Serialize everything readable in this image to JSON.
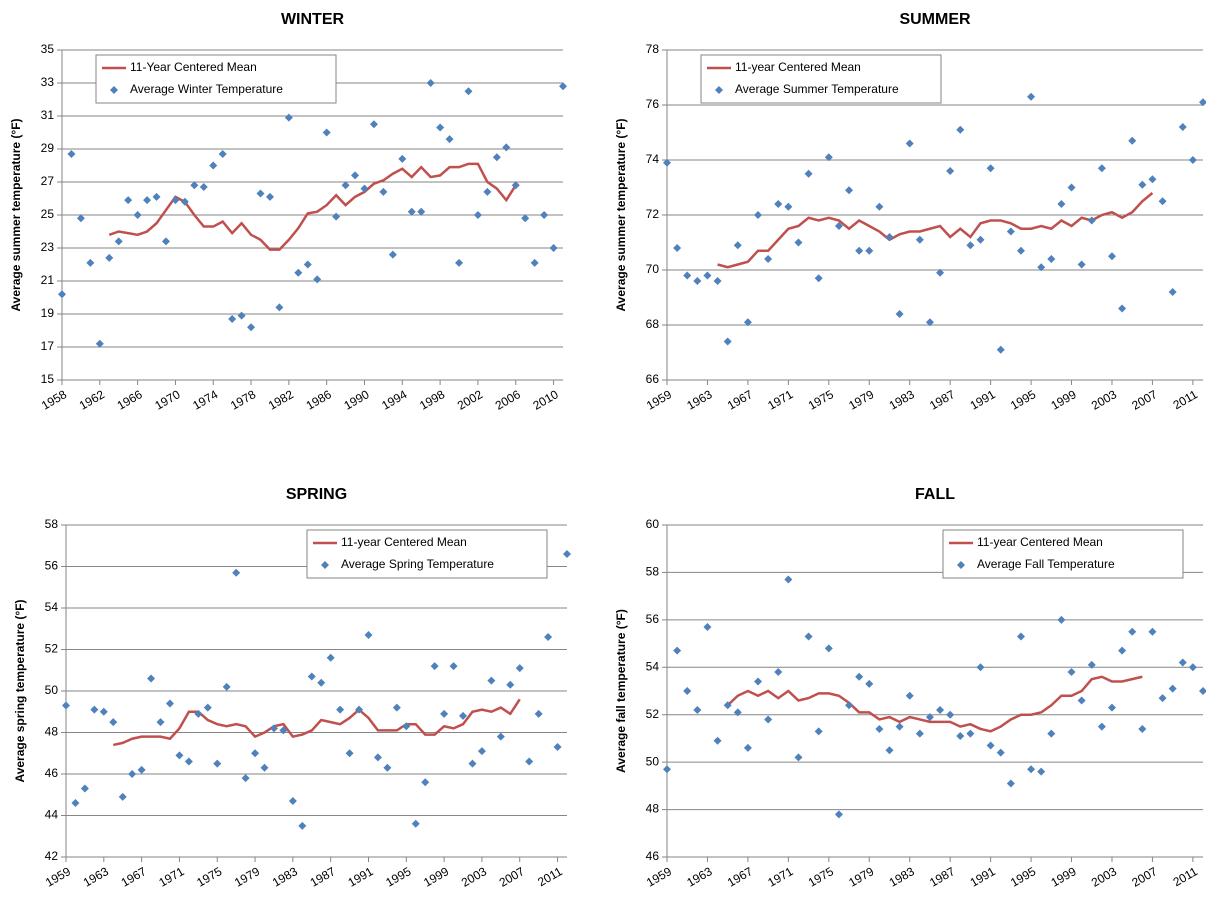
{
  "chart_data": [
    {
      "type": "line",
      "title": "WINTER",
      "y_label": "Average summer temperature (°F)",
      "legend": "top-left",
      "grid": true,
      "xlim": [
        1958,
        2011
      ],
      "xticks": [
        1958,
        1962,
        1966,
        1970,
        1974,
        1978,
        1982,
        1986,
        1990,
        1994,
        1998,
        2002,
        2006,
        2010
      ],
      "ylim": [
        15,
        35
      ],
      "yticks": [
        15,
        17,
        19,
        21,
        23,
        25,
        27,
        29,
        31,
        33,
        35
      ],
      "series": [
        {
          "name": "11-Year Centered Mean",
          "color": "#c0504d",
          "style": "line",
          "x": [
            1963,
            1964,
            1965,
            1966,
            1967,
            1968,
            1969,
            1970,
            1971,
            1972,
            1973,
            1974,
            1975,
            1976,
            1977,
            1978,
            1979,
            1980,
            1981,
            1982,
            1983,
            1984,
            1985,
            1986,
            1987,
            1988,
            1989,
            1990,
            1991,
            1992,
            1993,
            1994,
            1995,
            1996,
            1997,
            1998,
            1999,
            2000,
            2001,
            2002,
            2003,
            2004,
            2005,
            2006
          ],
          "values": [
            23.8,
            24.0,
            23.9,
            23.8,
            24.0,
            24.5,
            25.3,
            26.1,
            25.8,
            25.0,
            24.3,
            24.3,
            24.6,
            23.9,
            24.5,
            23.8,
            23.5,
            22.9,
            22.9,
            23.5,
            24.2,
            25.1,
            25.2,
            25.6,
            26.2,
            25.6,
            26.1,
            26.4,
            26.9,
            27.1,
            27.5,
            27.8,
            27.3,
            27.9,
            27.3,
            27.4,
            27.9,
            27.9,
            28.1,
            28.1,
            27.0,
            26.6,
            25.9,
            26.8
          ]
        },
        {
          "name": "Average Winter Temperature",
          "color": "#4f81bd",
          "style": "marker",
          "x": [
            1958,
            1959,
            1960,
            1961,
            1962,
            1963,
            1964,
            1965,
            1966,
            1967,
            1968,
            1969,
            1970,
            1971,
            1972,
            1973,
            1974,
            1975,
            1976,
            1977,
            1978,
            1979,
            1980,
            1981,
            1982,
            1983,
            1984,
            1985,
            1986,
            1987,
            1988,
            1989,
            1990,
            1991,
            1992,
            1993,
            1994,
            1995,
            1996,
            1997,
            1998,
            1999,
            2000,
            2001,
            2002,
            2003,
            2004,
            2005,
            2006,
            2007,
            2008,
            2009,
            2010,
            2011
          ],
          "values": [
            20.2,
            28.7,
            24.8,
            22.1,
            17.2,
            22.4,
            23.4,
            25.9,
            25.0,
            25.9,
            26.1,
            23.4,
            25.9,
            25.8,
            26.8,
            26.7,
            28.0,
            28.7,
            18.7,
            18.9,
            18.2,
            26.3,
            26.1,
            19.4,
            30.9,
            21.5,
            22.0,
            21.1,
            30.0,
            24.9,
            26.8,
            27.4,
            26.6,
            30.5,
            26.4,
            22.6,
            28.4,
            25.2,
            25.2,
            33.0,
            30.3,
            29.6,
            22.1,
            32.5,
            25.0,
            26.4,
            28.5,
            29.1,
            26.8,
            24.8,
            22.1,
            25.0,
            23.0,
            32.8
          ]
        }
      ]
    },
    {
      "type": "line",
      "title": "SUMMER",
      "y_label": "Average summer temperature (°F)",
      "legend": "top-left",
      "grid": true,
      "xlim": [
        1959,
        2012
      ],
      "xticks": [
        1959,
        1963,
        1967,
        1971,
        1975,
        1979,
        1983,
        1987,
        1991,
        1995,
        1999,
        2003,
        2007,
        2011
      ],
      "ylim": [
        66,
        78
      ],
      "yticks": [
        66,
        68,
        70,
        72,
        74,
        76,
        78
      ],
      "series": [
        {
          "name": "11-year Centered Mean",
          "color": "#c0504d",
          "style": "line",
          "x": [
            1964,
            1965,
            1966,
            1967,
            1968,
            1969,
            1970,
            1971,
            1972,
            1973,
            1974,
            1975,
            1976,
            1977,
            1978,
            1979,
            1980,
            1981,
            1982,
            1983,
            1984,
            1985,
            1986,
            1987,
            1988,
            1989,
            1990,
            1991,
            1992,
            1993,
            1994,
            1995,
            1996,
            1997,
            1998,
            1999,
            2000,
            2001,
            2002,
            2003,
            2004,
            2005,
            2006,
            2007
          ],
          "values": [
            70.2,
            70.1,
            70.2,
            70.3,
            70.7,
            70.7,
            71.1,
            71.5,
            71.6,
            71.9,
            71.8,
            71.9,
            71.8,
            71.5,
            71.8,
            71.6,
            71.4,
            71.1,
            71.3,
            71.4,
            71.4,
            71.5,
            71.6,
            71.2,
            71.5,
            71.2,
            71.7,
            71.8,
            71.8,
            71.7,
            71.5,
            71.5,
            71.6,
            71.5,
            71.8,
            71.6,
            71.9,
            71.8,
            72.0,
            72.1,
            71.9,
            72.1,
            72.5,
            72.8
          ]
        },
        {
          "name": "Average Summer Temperature",
          "color": "#4f81bd",
          "style": "marker",
          "x": [
            1959,
            1960,
            1961,
            1962,
            1963,
            1964,
            1965,
            1966,
            1967,
            1968,
            1969,
            1970,
            1971,
            1972,
            1973,
            1974,
            1975,
            1976,
            1977,
            1978,
            1979,
            1980,
            1981,
            1982,
            1983,
            1984,
            1985,
            1986,
            1987,
            1988,
            1989,
            1990,
            1991,
            1992,
            1993,
            1994,
            1995,
            1996,
            1997,
            1998,
            1999,
            2000,
            2001,
            2002,
            2003,
            2004,
            2005,
            2006,
            2007,
            2008,
            2009,
            2010,
            2011,
            2012
          ],
          "values": [
            73.9,
            70.8,
            69.8,
            69.6,
            69.8,
            69.6,
            67.4,
            70.9,
            68.1,
            72.0,
            70.4,
            72.4,
            72.3,
            71.0,
            73.5,
            69.7,
            74.1,
            71.6,
            72.9,
            70.7,
            70.7,
            72.3,
            71.2,
            68.4,
            74.6,
            71.1,
            68.1,
            69.9,
            73.6,
            75.1,
            70.9,
            71.1,
            73.7,
            67.1,
            71.4,
            70.7,
            76.3,
            70.1,
            70.4,
            72.4,
            73.0,
            70.2,
            71.8,
            73.7,
            70.5,
            68.6,
            74.7,
            73.1,
            73.3,
            72.5,
            69.2,
            75.2,
            74.0,
            76.1
          ]
        }
      ]
    },
    {
      "type": "line",
      "title": "SPRING",
      "y_label": "Average spring temperature (°F)",
      "legend": "top-right",
      "grid": true,
      "xlim": [
        1959,
        2012
      ],
      "xticks": [
        1959,
        1963,
        1967,
        1971,
        1975,
        1979,
        1983,
        1987,
        1991,
        1995,
        1999,
        2003,
        2007,
        2011
      ],
      "ylim": [
        42,
        58
      ],
      "yticks": [
        42,
        44,
        46,
        48,
        50,
        52,
        54,
        56,
        58
      ],
      "series": [
        {
          "name": "11-year Centered Mean",
          "color": "#c0504d",
          "style": "line",
          "x": [
            1964,
            1965,
            1966,
            1967,
            1968,
            1969,
            1970,
            1971,
            1972,
            1973,
            1974,
            1975,
            1976,
            1977,
            1978,
            1979,
            1980,
            1981,
            1982,
            1983,
            1984,
            1985,
            1986,
            1987,
            1988,
            1989,
            1990,
            1991,
            1992,
            1993,
            1994,
            1995,
            1996,
            1997,
            1998,
            1999,
            2000,
            2001,
            2002,
            2003,
            2004,
            2005,
            2006,
            2007
          ],
          "values": [
            47.4,
            47.5,
            47.7,
            47.8,
            47.8,
            47.8,
            47.7,
            48.2,
            49.0,
            49.0,
            48.6,
            48.4,
            48.3,
            48.4,
            48.3,
            47.8,
            48.0,
            48.3,
            48.4,
            47.8,
            47.9,
            48.1,
            48.6,
            48.5,
            48.4,
            48.7,
            49.1,
            48.7,
            48.1,
            48.1,
            48.1,
            48.4,
            48.4,
            47.9,
            47.9,
            48.3,
            48.2,
            48.4,
            49.0,
            49.1,
            49.0,
            49.2,
            48.9,
            49.6
          ]
        },
        {
          "name": "Average Spring Temperature",
          "color": "#4f81bd",
          "style": "marker",
          "x": [
            1959,
            1960,
            1961,
            1962,
            1963,
            1964,
            1965,
            1966,
            1967,
            1968,
            1969,
            1970,
            1971,
            1972,
            1973,
            1974,
            1975,
            1976,
            1977,
            1978,
            1979,
            1980,
            1981,
            1982,
            1983,
            1984,
            1985,
            1986,
            1987,
            1988,
            1989,
            1990,
            1991,
            1992,
            1993,
            1994,
            1995,
            1996,
            1997,
            1998,
            1999,
            2000,
            2001,
            2002,
            2003,
            2004,
            2005,
            2006,
            2007,
            2008,
            2009,
            2010,
            2011,
            2012
          ],
          "values": [
            49.3,
            44.6,
            45.3,
            49.1,
            49.0,
            48.5,
            44.9,
            46.0,
            46.2,
            50.6,
            48.5,
            49.4,
            46.9,
            46.6,
            48.9,
            49.2,
            46.5,
            50.2,
            55.7,
            45.8,
            47.0,
            46.3,
            48.2,
            48.1,
            44.7,
            43.5,
            50.7,
            50.4,
            51.6,
            49.1,
            47.0,
            49.1,
            52.7,
            46.8,
            46.3,
            49.2,
            48.3,
            43.6,
            45.6,
            51.2,
            48.9,
            51.2,
            48.8,
            46.5,
            47.1,
            50.5,
            47.8,
            50.3,
            51.1,
            46.6,
            48.9,
            52.6,
            47.3,
            56.6
          ]
        }
      ]
    },
    {
      "type": "line",
      "title": "FALL",
      "y_label": "Average fall temperature (°F)",
      "legend": "top-right",
      "grid": true,
      "xlim": [
        1959,
        2012
      ],
      "xticks": [
        1959,
        1963,
        1967,
        1971,
        1975,
        1979,
        1983,
        1987,
        1991,
        1995,
        1999,
        2003,
        2007,
        2011
      ],
      "ylim": [
        46,
        60
      ],
      "yticks": [
        46,
        48,
        50,
        52,
        54,
        56,
        58,
        60
      ],
      "series": [
        {
          "name": "11-year Centered Mean",
          "color": "#c0504d",
          "style": "line",
          "x": [
            1965,
            1966,
            1967,
            1968,
            1969,
            1970,
            1971,
            1972,
            1973,
            1974,
            1975,
            1976,
            1977,
            1978,
            1979,
            1980,
            1981,
            1982,
            1983,
            1984,
            1985,
            1986,
            1987,
            1988,
            1989,
            1990,
            1991,
            1992,
            1993,
            1994,
            1995,
            1996,
            1997,
            1998,
            1999,
            2000,
            2001,
            2002,
            2003,
            2004,
            2005,
            2006
          ],
          "values": [
            52.4,
            52.8,
            53.0,
            52.8,
            53.0,
            52.7,
            53.0,
            52.6,
            52.7,
            52.9,
            52.9,
            52.8,
            52.5,
            52.1,
            52.1,
            51.8,
            51.9,
            51.7,
            51.9,
            51.8,
            51.7,
            51.7,
            51.7,
            51.5,
            51.6,
            51.4,
            51.3,
            51.5,
            51.8,
            52.0,
            52.0,
            52.1,
            52.4,
            52.8,
            52.8,
            53.0,
            53.5,
            53.6,
            53.4,
            53.4,
            53.5,
            53.6
          ]
        },
        {
          "name": "Average Fall Temperature",
          "color": "#4f81bd",
          "style": "marker",
          "x": [
            1959,
            1960,
            1961,
            1962,
            1963,
            1964,
            1965,
            1966,
            1967,
            1968,
            1969,
            1970,
            1971,
            1972,
            1973,
            1974,
            1975,
            1976,
            1977,
            1978,
            1979,
            1980,
            1981,
            1982,
            1983,
            1984,
            1985,
            1986,
            1987,
            1988,
            1989,
            1990,
            1991,
            1992,
            1993,
            1994,
            1995,
            1996,
            1997,
            1998,
            1999,
            2000,
            2001,
            2002,
            2003,
            2004,
            2005,
            2006,
            2007,
            2008,
            2009,
            2010,
            2011,
            2012
          ],
          "values": [
            49.7,
            54.7,
            53.0,
            52.2,
            55.7,
            50.9,
            52.4,
            52.1,
            50.6,
            53.4,
            51.8,
            53.8,
            57.7,
            50.2,
            55.3,
            51.3,
            54.8,
            47.8,
            52.4,
            53.6,
            53.3,
            51.4,
            50.5,
            51.5,
            52.8,
            51.2,
            51.9,
            52.2,
            52.0,
            51.1,
            51.2,
            54.0,
            50.7,
            50.4,
            49.1,
            55.3,
            49.7,
            49.6,
            51.2,
            56.0,
            53.8,
            52.6,
            54.1,
            51.5,
            52.3,
            54.7,
            55.5,
            51.4,
            55.5,
            52.7,
            53.1,
            54.2,
            54.0,
            53.0
          ]
        }
      ]
    }
  ]
}
